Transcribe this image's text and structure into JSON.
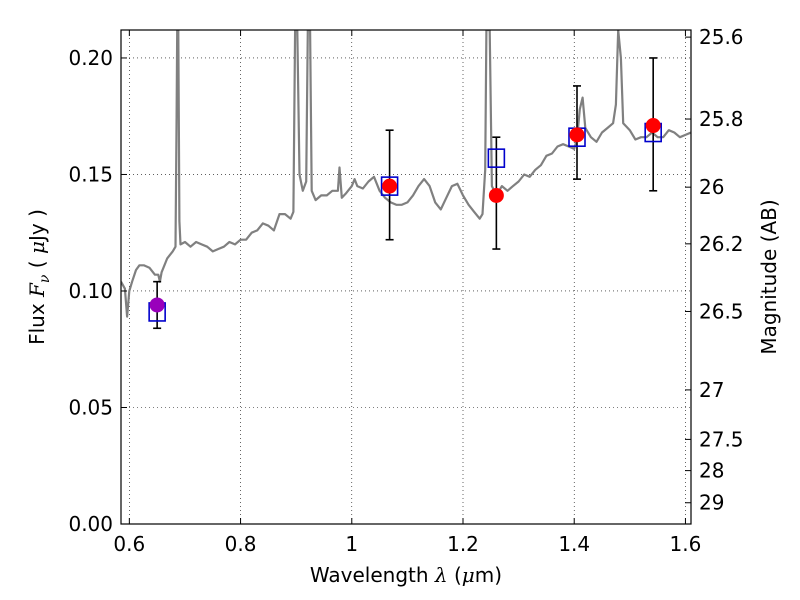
{
  "chart_data": {
    "type": "scatter",
    "xlabel_parts": {
      "text": "Wavelength",
      "symbol": "λ",
      "unit_open": " (",
      "mu": "μ",
      "unit_rest": "m)"
    },
    "ylabel_parts": {
      "text": "Flux",
      "symbol": "F",
      "sub": "ν",
      "unit_open": "( ",
      "mu": "μ",
      "unit_rest": "Jy )"
    },
    "y2label": "Magnitude (AB)",
    "xlim": [
      0.585,
      1.61
    ],
    "ylim": [
      0.0,
      0.212
    ],
    "x_ticks": [
      {
        "value": 0.6,
        "label": "0.6"
      },
      {
        "value": 0.8,
        "label": "0.8"
      },
      {
        "value": 1.0,
        "label": "1"
      },
      {
        "value": 1.2,
        "label": "1.2"
      },
      {
        "value": 1.4,
        "label": "1.4"
      },
      {
        "value": 1.6,
        "label": "1.6"
      }
    ],
    "y_ticks": [
      {
        "value": 0.0,
        "label": "0.00"
      },
      {
        "value": 0.05,
        "label": "0.05"
      },
      {
        "value": 0.1,
        "label": "0.10"
      },
      {
        "value": 0.15,
        "label": "0.15"
      },
      {
        "value": 0.2,
        "label": "0.20"
      }
    ],
    "mag_ticks": [
      {
        "value": 25.6,
        "label": "25.6"
      },
      {
        "value": 25.8,
        "label": "25.8"
      },
      {
        "value": 26.0,
        "label": "26"
      },
      {
        "value": 26.2,
        "label": "26.2"
      },
      {
        "value": 26.5,
        "label": "26.5"
      },
      {
        "value": 27.0,
        "label": "27"
      },
      {
        "value": 27.5,
        "label": "27.5"
      },
      {
        "value": 28.0,
        "label": "28"
      },
      {
        "value": 29.0,
        "label": "29"
      }
    ],
    "grid": true,
    "colors": {
      "model": "#808080",
      "observed": "#ff0000",
      "first_point": "#9900bb",
      "model_box": "#0000cc",
      "error": "#000000"
    },
    "model_spectrum": [
      [
        0.585,
        0.104
      ],
      [
        0.592,
        0.101
      ],
      [
        0.596,
        0.089
      ],
      [
        0.6,
        0.1
      ],
      [
        0.605,
        0.104
      ],
      [
        0.612,
        0.109
      ],
      [
        0.618,
        0.111
      ],
      [
        0.626,
        0.111
      ],
      [
        0.636,
        0.11
      ],
      [
        0.646,
        0.107
      ],
      [
        0.652,
        0.107
      ],
      [
        0.655,
        0.104
      ],
      [
        0.658,
        0.108
      ],
      [
        0.668,
        0.114
      ],
      [
        0.678,
        0.117
      ],
      [
        0.683,
        0.119
      ],
      [
        0.685,
        0.175
      ],
      [
        0.686,
        0.212
      ],
      [
        0.688,
        0.212
      ],
      [
        0.69,
        0.13
      ],
      [
        0.692,
        0.12
      ],
      [
        0.7,
        0.121
      ],
      [
        0.71,
        0.119
      ],
      [
        0.72,
        0.121
      ],
      [
        0.73,
        0.12
      ],
      [
        0.74,
        0.119
      ],
      [
        0.75,
        0.117
      ],
      [
        0.76,
        0.118
      ],
      [
        0.77,
        0.119
      ],
      [
        0.78,
        0.121
      ],
      [
        0.79,
        0.12
      ],
      [
        0.8,
        0.122
      ],
      [
        0.81,
        0.122
      ],
      [
        0.82,
        0.125
      ],
      [
        0.83,
        0.126
      ],
      [
        0.84,
        0.129
      ],
      [
        0.85,
        0.128
      ],
      [
        0.86,
        0.126
      ],
      [
        0.87,
        0.133
      ],
      [
        0.88,
        0.133
      ],
      [
        0.89,
        0.131
      ],
      [
        0.895,
        0.134
      ],
      [
        0.898,
        0.212
      ],
      [
        0.902,
        0.212
      ],
      [
        0.906,
        0.15
      ],
      [
        0.912,
        0.143
      ],
      [
        0.918,
        0.147
      ],
      [
        0.921,
        0.212
      ],
      [
        0.925,
        0.212
      ],
      [
        0.928,
        0.143
      ],
      [
        0.935,
        0.139
      ],
      [
        0.945,
        0.141
      ],
      [
        0.955,
        0.141
      ],
      [
        0.965,
        0.143
      ],
      [
        0.975,
        0.143
      ],
      [
        0.978,
        0.153
      ],
      [
        0.982,
        0.14
      ],
      [
        0.99,
        0.142
      ],
      [
        1.0,
        0.145
      ],
      [
        1.005,
        0.148
      ],
      [
        1.01,
        0.145
      ],
      [
        1.02,
        0.144
      ],
      [
        1.03,
        0.147
      ],
      [
        1.04,
        0.149
      ],
      [
        1.05,
        0.143
      ],
      [
        1.06,
        0.14
      ],
      [
        1.07,
        0.138
      ],
      [
        1.08,
        0.137
      ],
      [
        1.09,
        0.137
      ],
      [
        1.1,
        0.138
      ],
      [
        1.11,
        0.141
      ],
      [
        1.12,
        0.145
      ],
      [
        1.13,
        0.148
      ],
      [
        1.14,
        0.145
      ],
      [
        1.15,
        0.138
      ],
      [
        1.16,
        0.135
      ],
      [
        1.17,
        0.14
      ],
      [
        1.18,
        0.145
      ],
      [
        1.19,
        0.146
      ],
      [
        1.2,
        0.141
      ],
      [
        1.21,
        0.137
      ],
      [
        1.22,
        0.134
      ],
      [
        1.23,
        0.131
      ],
      [
        1.235,
        0.133
      ],
      [
        1.24,
        0.152
      ],
      [
        1.242,
        0.212
      ],
      [
        1.248,
        0.212
      ],
      [
        1.252,
        0.145
      ],
      [
        1.26,
        0.141
      ],
      [
        1.27,
        0.145
      ],
      [
        1.28,
        0.143
      ],
      [
        1.29,
        0.145
      ],
      [
        1.3,
        0.147
      ],
      [
        1.31,
        0.15
      ],
      [
        1.32,
        0.149
      ],
      [
        1.33,
        0.152
      ],
      [
        1.34,
        0.154
      ],
      [
        1.35,
        0.158
      ],
      [
        1.36,
        0.159
      ],
      [
        1.37,
        0.162
      ],
      [
        1.38,
        0.163
      ],
      [
        1.39,
        0.162
      ],
      [
        1.4,
        0.161
      ],
      [
        1.405,
        0.165
      ],
      [
        1.41,
        0.178
      ],
      [
        1.415,
        0.183
      ],
      [
        1.42,
        0.17
      ],
      [
        1.43,
        0.166
      ],
      [
        1.44,
        0.164
      ],
      [
        1.45,
        0.168
      ],
      [
        1.46,
        0.17
      ],
      [
        1.47,
        0.172
      ],
      [
        1.475,
        0.18
      ],
      [
        1.479,
        0.212
      ],
      [
        1.484,
        0.2
      ],
      [
        1.488,
        0.172
      ],
      [
        1.5,
        0.169
      ],
      [
        1.51,
        0.165
      ],
      [
        1.52,
        0.166
      ],
      [
        1.53,
        0.166
      ],
      [
        1.54,
        0.168
      ],
      [
        1.55,
        0.166
      ],
      [
        1.56,
        0.166
      ],
      [
        1.57,
        0.169
      ],
      [
        1.58,
        0.168
      ],
      [
        1.59,
        0.166
      ],
      [
        1.6,
        0.167
      ],
      [
        1.61,
        0.168
      ]
    ],
    "observed": [
      {
        "x": 0.65,
        "y": 0.094,
        "yerr_low": 0.084,
        "yerr_high": 0.104,
        "model": 0.091,
        "color": "first_point"
      },
      {
        "x": 1.068,
        "y": 0.145,
        "yerr_low": 0.122,
        "yerr_high": 0.169,
        "model": 0.145,
        "color": "observed"
      },
      {
        "x": 1.26,
        "y": 0.141,
        "yerr_low": 0.118,
        "yerr_high": 0.166,
        "model": 0.157,
        "color": "observed"
      },
      {
        "x": 1.405,
        "y": 0.167,
        "yerr_low": 0.148,
        "yerr_high": 0.188,
        "model": 0.166,
        "color": "observed"
      },
      {
        "x": 1.542,
        "y": 0.171,
        "yerr_low": 0.143,
        "yerr_high": 0.2,
        "model": 0.168,
        "color": "observed"
      }
    ]
  }
}
